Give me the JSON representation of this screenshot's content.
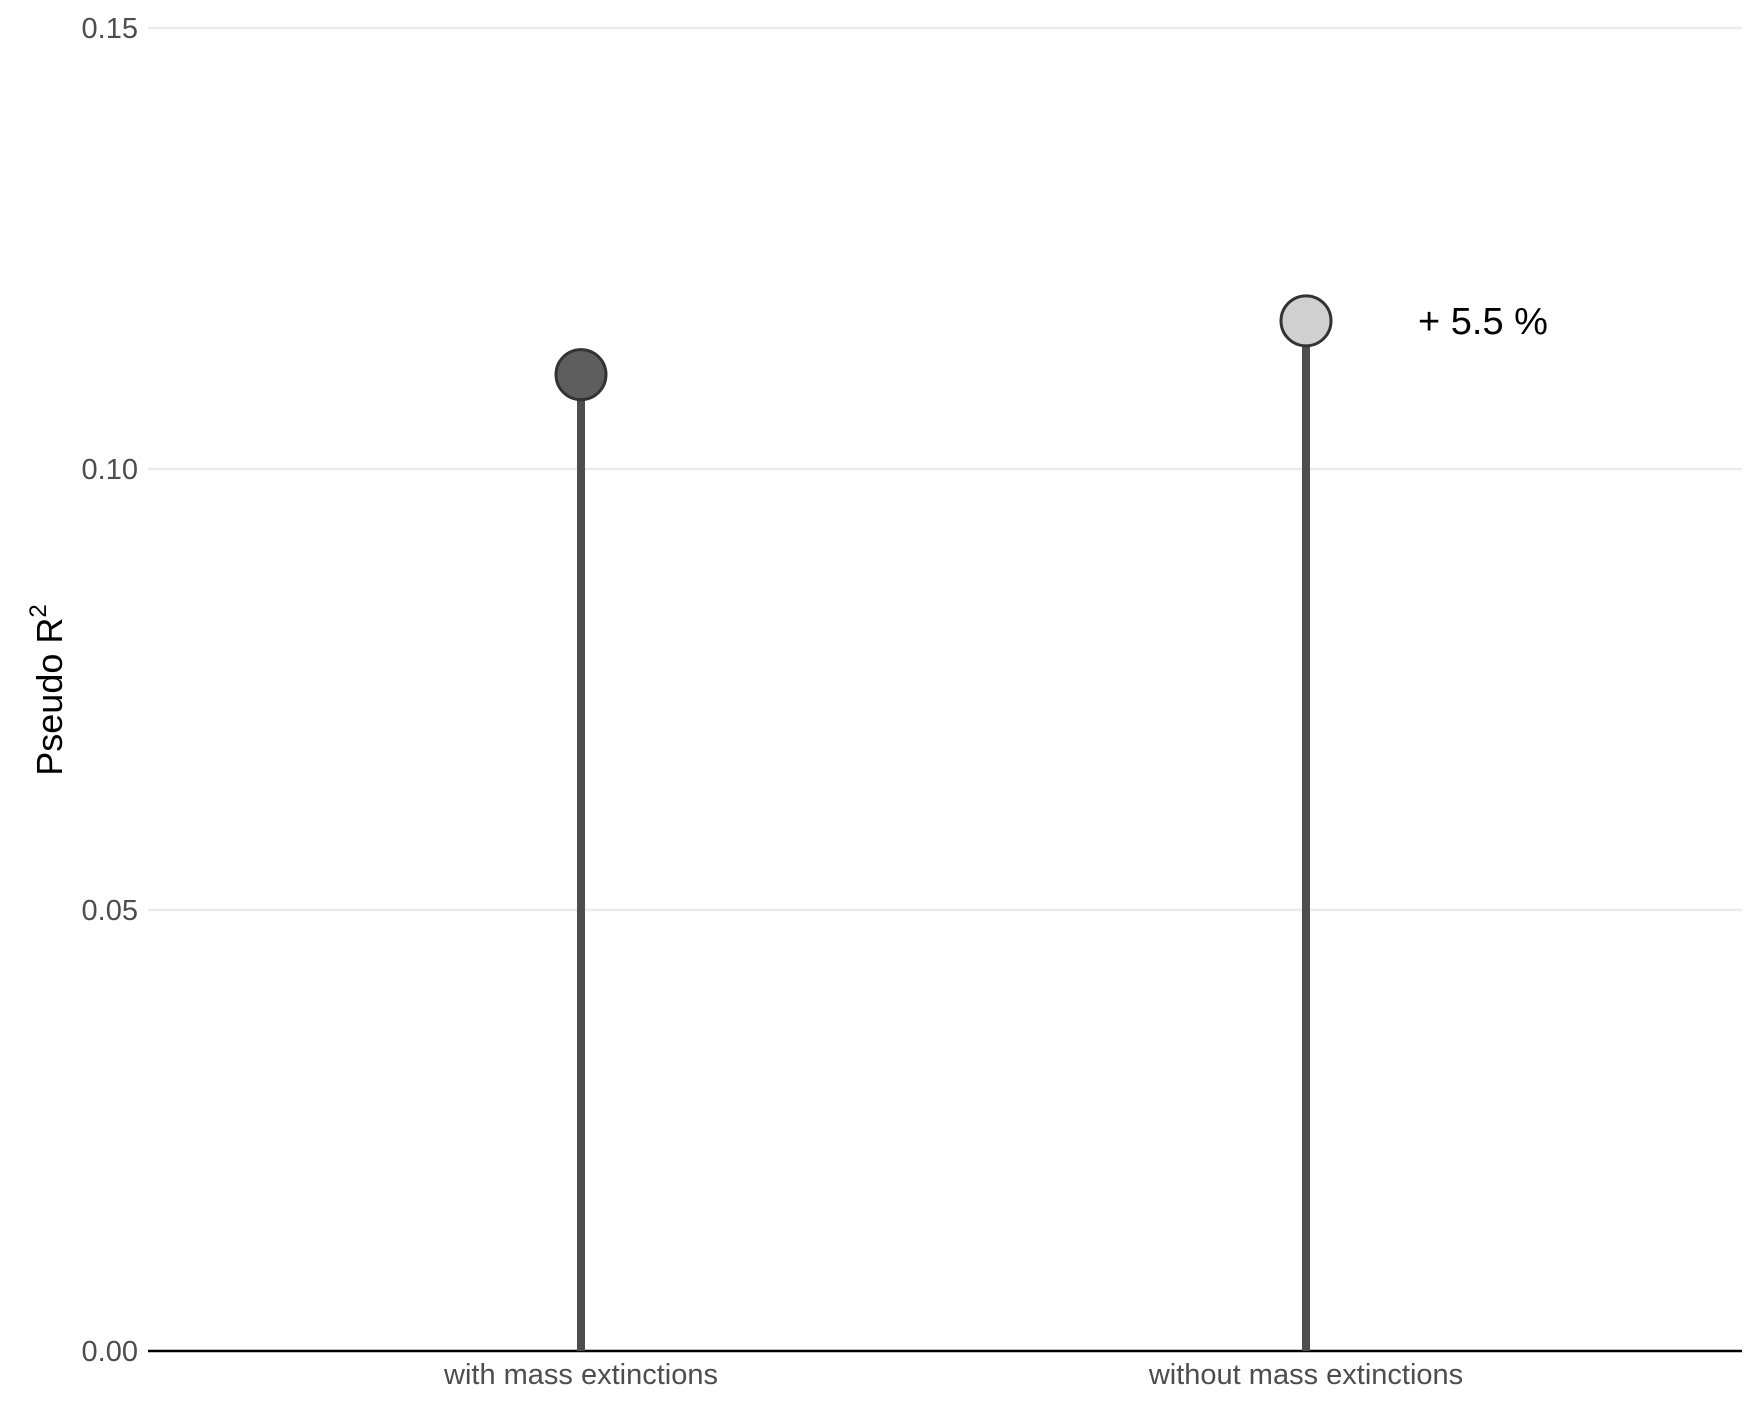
{
  "chart_data": {
    "type": "lollipop",
    "categories": [
      "with mass extinctions",
      "without mass extinctions"
    ],
    "values": [
      0.1107,
      0.1168
    ],
    "point_colors": [
      "#5e5e5e",
      "#d0d0d0"
    ],
    "stem_color": "#4d4d4d",
    "ylabel": "Pseudo R",
    "ylabel_superscript": "2",
    "xlabel": "",
    "ylim": [
      0,
      0.15
    ],
    "yticks": [
      0.0,
      0.05,
      0.1,
      0.15
    ],
    "ytick_labels": [
      "0.00",
      "0.05",
      "0.10",
      "0.15"
    ],
    "grid": "horizontal",
    "annotations": [
      {
        "text": "+ 5.5 %",
        "category": "without mass extinctions",
        "y": 0.1168
      }
    ]
  }
}
